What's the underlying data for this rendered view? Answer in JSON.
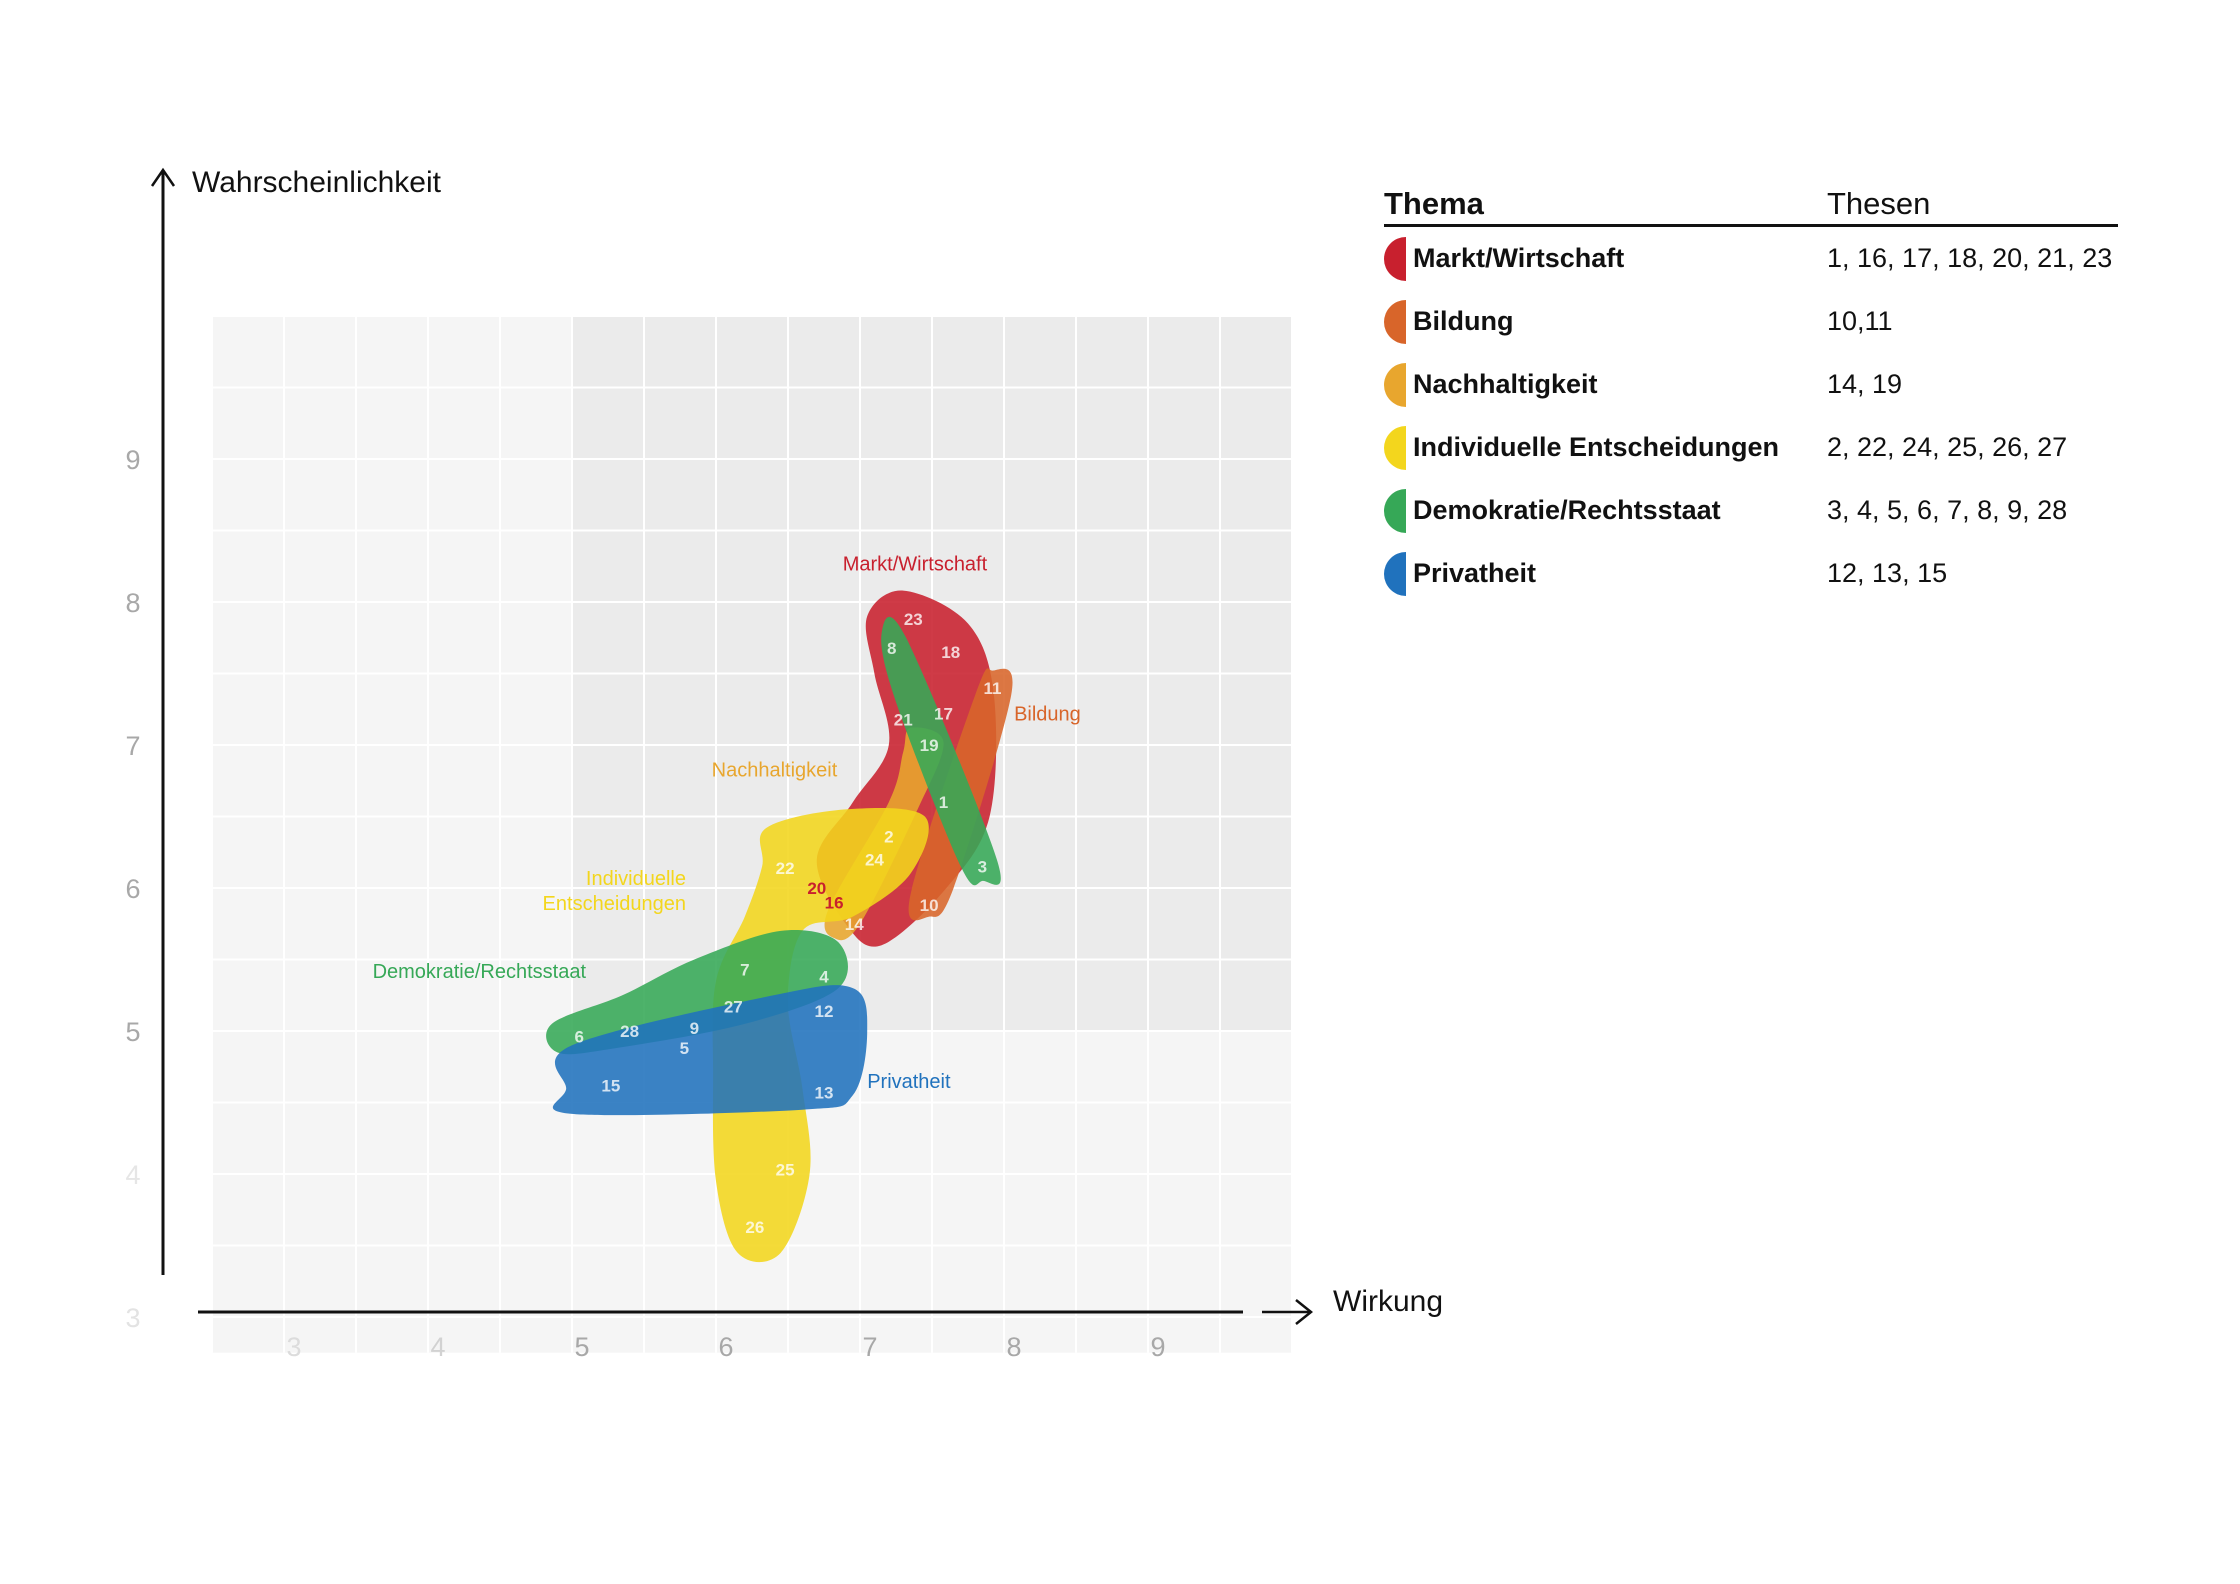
{
  "chart_data": {
    "type": "scatter",
    "title": "",
    "xlabel": "Wirkung",
    "ylabel": "Wahrscheinlichkeit",
    "xlim": [
      2.5,
      10
    ],
    "ylim": [
      2.75,
      10
    ],
    "x_ticks": [
      "3",
      "4",
      "5",
      "6",
      "7",
      "8",
      "9"
    ],
    "y_ticks": [
      "3",
      "4",
      "5",
      "6",
      "7",
      "8",
      "9"
    ],
    "grid": true,
    "legend_position": "right",
    "series": [
      {
        "name": "Markt/Wirtschaft",
        "color": "#c8202e",
        "label": "Markt/Wirtschaft",
        "label_pos": [
          6.88,
          8.22
        ],
        "outline": [
          [
            7.05,
            7.9
          ],
          [
            7.3,
            8.08
          ],
          [
            7.75,
            7.85
          ],
          [
            7.93,
            7.35
          ],
          [
            7.9,
            6.5
          ],
          [
            7.6,
            6.0
          ],
          [
            7.15,
            5.6
          ],
          [
            6.9,
            5.75
          ],
          [
            6.7,
            6.2
          ],
          [
            6.95,
            6.6
          ],
          [
            7.2,
            7.0
          ],
          [
            7.1,
            7.5
          ]
        ],
        "points": [
          {
            "label": "23",
            "x": 7.37,
            "y": 7.88
          },
          {
            "label": "18",
            "x": 7.63,
            "y": 7.65
          },
          {
            "label": "21",
            "x": 7.3,
            "y": 7.18
          },
          {
            "label": "17",
            "x": 7.58,
            "y": 7.22
          },
          {
            "label": "1",
            "x": 7.58,
            "y": 6.6
          },
          {
            "label": "20",
            "x": 6.7,
            "y": 6.0
          },
          {
            "label": "16",
            "x": 6.82,
            "y": 5.9
          }
        ]
      },
      {
        "name": "Bildung",
        "color": "#d8652a",
        "label": "Bildung",
        "label_pos": [
          8.07,
          7.17
        ],
        "outline": [
          [
            7.92,
            7.52
          ],
          [
            8.05,
            7.35
          ],
          [
            7.65,
            6.0
          ],
          [
            7.48,
            5.8
          ],
          [
            7.35,
            5.95
          ],
          [
            7.8,
            7.35
          ]
        ],
        "points": [
          {
            "label": "11",
            "x": 7.92,
            "y": 7.4
          },
          {
            "label": "10",
            "x": 7.48,
            "y": 5.88
          }
        ]
      },
      {
        "name": "Nachhaltigkeit",
        "color": "#e8a62e",
        "label": "Nachhaltigkeit",
        "label_pos": [
          5.97,
          6.78
        ],
        "outline": [
          [
            7.35,
            7.12
          ],
          [
            7.58,
            7.02
          ],
          [
            7.4,
            6.55
          ],
          [
            7.0,
            5.75
          ],
          [
            6.82,
            5.65
          ],
          [
            6.78,
            5.85
          ],
          [
            7.2,
            6.6
          ],
          [
            7.3,
            6.95
          ]
        ],
        "points": [
          {
            "label": "19",
            "x": 7.48,
            "y": 7.0
          },
          {
            "label": "14",
            "x": 6.96,
            "y": 5.75
          }
        ]
      },
      {
        "name": "Individuelle Entscheidungen",
        "color": "#f3d61d",
        "label": "Individuelle Entscheidungen",
        "label_pos": [
          5.15,
          6.02
        ],
        "outline": [
          [
            6.35,
            6.42
          ],
          [
            6.9,
            6.55
          ],
          [
            7.45,
            6.5
          ],
          [
            7.35,
            6.1
          ],
          [
            6.95,
            5.8
          ],
          [
            6.6,
            5.7
          ],
          [
            6.5,
            5.2
          ],
          [
            6.6,
            4.6
          ],
          [
            6.65,
            4.0
          ],
          [
            6.45,
            3.45
          ],
          [
            6.15,
            3.45
          ],
          [
            6.0,
            3.95
          ],
          [
            5.98,
            4.7
          ],
          [
            6.0,
            5.35
          ],
          [
            6.2,
            5.8
          ],
          [
            6.32,
            6.15
          ]
        ],
        "points": [
          {
            "label": "2",
            "x": 7.2,
            "y": 6.36
          },
          {
            "label": "24",
            "x": 7.1,
            "y": 6.2
          },
          {
            "label": "22",
            "x": 6.48,
            "y": 6.14
          },
          {
            "label": "27",
            "x": 6.12,
            "y": 5.17
          },
          {
            "label": "25",
            "x": 6.48,
            "y": 4.03
          },
          {
            "label": "26",
            "x": 6.27,
            "y": 3.63
          }
        ]
      },
      {
        "name": "Demokratie/Rechtsstaat",
        "color": "#36a857",
        "label": "Demokratie/Rechtsstaat",
        "label_pos": [
          4.15,
          5.37
        ],
        "outline": [
          [
            5.85,
            5.5
          ],
          [
            6.45,
            5.7
          ],
          [
            6.85,
            5.62
          ],
          [
            6.85,
            5.3
          ],
          [
            6.2,
            5.05
          ],
          [
            5.3,
            4.88
          ],
          [
            4.9,
            4.85
          ],
          [
            4.86,
            5.05
          ],
          [
            5.35,
            5.25
          ]
        ],
        "points": [
          {
            "label": "8",
            "x": 7.22,
            "y": 7.68
          },
          {
            "label": "3",
            "x": 7.85,
            "y": 6.15
          },
          {
            "label": "7",
            "x": 6.2,
            "y": 5.43
          },
          {
            "label": "4",
            "x": 6.75,
            "y": 5.38
          },
          {
            "label": "6",
            "x": 5.05,
            "y": 4.96
          },
          {
            "label": "28",
            "x": 5.4,
            "y": 5.0
          },
          {
            "label": "9",
            "x": 5.85,
            "y": 5.02
          },
          {
            "label": "5",
            "x": 5.78,
            "y": 4.88
          }
        ],
        "extra_outline": [
          [
            7.15,
            7.78
          ],
          [
            7.32,
            7.75
          ],
          [
            7.95,
            6.2
          ],
          [
            7.85,
            6.05
          ],
          [
            7.7,
            6.15
          ],
          [
            7.25,
            7.3
          ]
        ]
      },
      {
        "name": "Privatheit",
        "color": "#2072bd",
        "label": "Privatheit",
        "label_pos": [
          7.05,
          4.6
        ],
        "outline": [
          [
            5.0,
            4.9
          ],
          [
            6.4,
            5.25
          ],
          [
            6.95,
            5.3
          ],
          [
            7.05,
            5.0
          ],
          [
            6.95,
            4.55
          ],
          [
            6.6,
            4.45
          ],
          [
            5.0,
            4.42
          ],
          [
            4.96,
            4.6
          ]
        ],
        "points": [
          {
            "label": "12",
            "x": 6.75,
            "y": 5.14
          },
          {
            "label": "15",
            "x": 5.27,
            "y": 4.62
          },
          {
            "label": "13",
            "x": 6.75,
            "y": 4.57
          }
        ]
      }
    ]
  },
  "legend": {
    "header_topic": "Thema",
    "header_theses": "Thesen",
    "rows": [
      {
        "name": "Markt/Wirtschaft",
        "theses": "1, 16, 17, 18, 20, 21, 23",
        "color": "#c8202e"
      },
      {
        "name": "Bildung",
        "theses": "10,11",
        "color": "#d8652a"
      },
      {
        "name": "Nachhaltigkeit",
        "theses": "14, 19",
        "color": "#e8a62e"
      },
      {
        "name": "Individuelle Entscheidungen",
        "theses": "2, 22, 24, 25, 26, 27",
        "color": "#f3d61d"
      },
      {
        "name": "Demokratie/Rechtsstaat",
        "theses": "3, 4, 5, 6, 7, 8, 9, 28",
        "color": "#36a857"
      },
      {
        "name": "Privatheit",
        "theses": "12, 13, 15",
        "color": "#2072bd"
      }
    ]
  }
}
